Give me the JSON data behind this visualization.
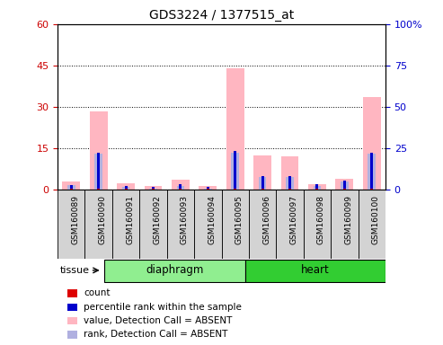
{
  "title": "GDS3224 / 1377515_at",
  "samples": [
    "GSM160089",
    "GSM160090",
    "GSM160091",
    "GSM160092",
    "GSM160093",
    "GSM160094",
    "GSM160095",
    "GSM160096",
    "GSM160097",
    "GSM160098",
    "GSM160099",
    "GSM160100"
  ],
  "value_absent": [
    3.0,
    28.5,
    2.5,
    1.5,
    3.5,
    1.5,
    44.0,
    12.5,
    12.0,
    2.0,
    4.0,
    33.5
  ],
  "rank_absent": [
    1.8,
    13.0,
    1.0,
    0.5,
    1.5,
    0.5,
    13.5,
    4.5,
    4.5,
    1.5,
    3.0,
    13.0
  ],
  "count": [
    0.5,
    0.5,
    0.5,
    0.5,
    0.5,
    0.5,
    0.5,
    0.5,
    0.5,
    0.5,
    0.5,
    0.5
  ],
  "percentile": [
    1.2,
    13.0,
    0.9,
    0.5,
    1.4,
    0.5,
    13.5,
    4.5,
    4.5,
    1.4,
    2.8,
    13.0
  ],
  "tissues": [
    {
      "label": "diaphragm",
      "start": 0,
      "end": 6,
      "color": "#90ee90"
    },
    {
      "label": "heart",
      "start": 6,
      "end": 12,
      "color": "#32cd32"
    }
  ],
  "left_ylim": [
    0,
    60
  ],
  "right_ylim": [
    0,
    100
  ],
  "left_yticks": [
    0,
    15,
    30,
    45,
    60
  ],
  "right_yticks": [
    0,
    25,
    50,
    75,
    100
  ],
  "left_yticklabels": [
    "0",
    "15",
    "30",
    "45",
    "60"
  ],
  "right_yticklabels": [
    "0",
    "25",
    "50",
    "75",
    "100%"
  ],
  "color_value_absent": "#ffb6c1",
  "color_rank_absent": "#b0b0e0",
  "color_count": "#dd0000",
  "color_percentile": "#0000cc",
  "grid_yticks": [
    15,
    30,
    45
  ],
  "tick_label_color_left": "#cc0000",
  "tick_label_color_right": "#0000cc",
  "legend_items": [
    [
      "#dd0000",
      "count"
    ],
    [
      "#0000cc",
      "percentile rank within the sample"
    ],
    [
      "#ffb6c1",
      "value, Detection Call = ABSENT"
    ],
    [
      "#b0b0e0",
      "rank, Detection Call = ABSENT"
    ]
  ]
}
